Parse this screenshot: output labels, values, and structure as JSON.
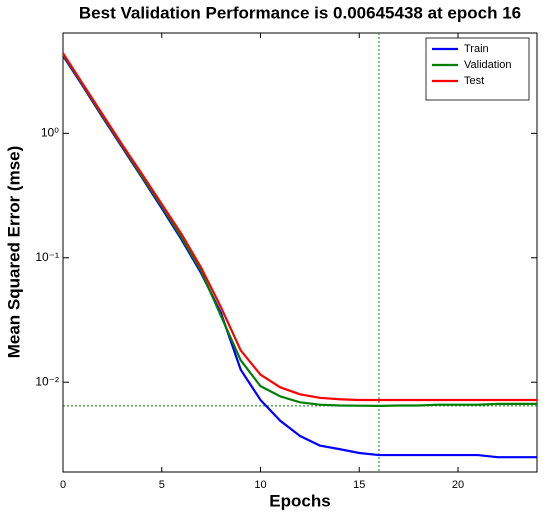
{
  "chart_data": {
    "type": "line",
    "title": "Best Validation Performance is 0.00645438 at epoch 16",
    "x_label": "Epochs",
    "y_label": "Mean Squared Error  (mse)",
    "x": [
      0,
      1,
      2,
      3,
      4,
      5,
      6,
      7,
      8,
      9,
      10,
      11,
      12,
      13,
      14,
      15,
      16,
      17,
      18,
      19,
      20,
      21,
      22,
      23,
      24
    ],
    "series": [
      {
        "name": "Train",
        "color": "#0000ff",
        "values": [
          4.2,
          2.4,
          1.35,
          0.77,
          0.44,
          0.25,
          0.14,
          0.075,
          0.036,
          0.0126,
          0.0072,
          0.0049,
          0.0037,
          0.0031,
          0.0029,
          0.0027,
          0.0026,
          0.0026,
          0.0026,
          0.0026,
          0.0026,
          0.0026,
          0.0025,
          0.0025,
          0.0025
        ]
      },
      {
        "name": "Validation",
        "color": "#008000",
        "values": [
          4.3,
          2.45,
          1.38,
          0.79,
          0.45,
          0.26,
          0.145,
          0.078,
          0.034,
          0.015,
          0.0093,
          0.0077,
          0.0069,
          0.0066,
          0.0065,
          0.00648,
          0.00645438,
          0.0065,
          0.0065,
          0.0066,
          0.0066,
          0.0066,
          0.0067,
          0.0067,
          0.0067
        ]
      },
      {
        "name": "Test",
        "color": "#ff0000",
        "values": [
          4.4,
          2.5,
          1.42,
          0.81,
          0.47,
          0.27,
          0.155,
          0.083,
          0.04,
          0.018,
          0.0115,
          0.0091,
          0.008,
          0.0075,
          0.0073,
          0.0072,
          0.0072,
          0.0072,
          0.0072,
          0.0072,
          0.0072,
          0.0072,
          0.0072,
          0.0072,
          0.0072
        ]
      }
    ],
    "best_epoch": 16,
    "best_value": 0.00645438,
    "best_color": "#008000",
    "xlim": [
      0,
      24
    ],
    "ylim": [
      0.0019,
      6.4
    ],
    "xticks": [
      0,
      5,
      10,
      15,
      20
    ],
    "yticks": [
      {
        "value": 0.01,
        "label": "10⁻²"
      },
      {
        "value": 0.1,
        "label": "10⁻¹"
      },
      {
        "value": 1,
        "label": "10⁰"
      }
    ],
    "log_y": true,
    "legend": "upper right"
  }
}
